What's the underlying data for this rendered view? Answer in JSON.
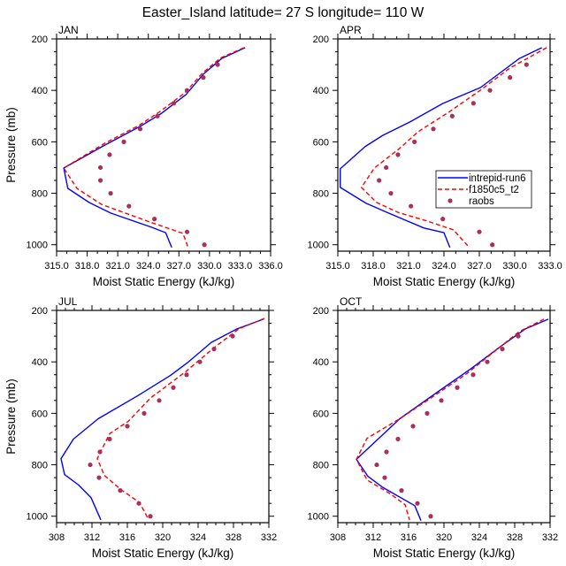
{
  "figure": {
    "title": "Easter_Island  latitude= 27 S longitude= 110 W"
  },
  "legend": {
    "placement": "APR panel, lower-right",
    "entries": [
      {
        "label": "intrepid-run6",
        "style": "solid",
        "color": "#0000ff"
      },
      {
        "label": "f1850c5_t2",
        "style": "dashed",
        "color": "#ff0000"
      },
      {
        "label": "raobs",
        "style": "marker",
        "color": "#a8305c"
      }
    ]
  },
  "chart_data": [
    {
      "type": "line",
      "panel": "top-left",
      "title": "JAN",
      "xlabel": "Moist Static Energy (kJ/kg)",
      "ylabel": "Pressure (mb)",
      "xlim": [
        315,
        336
      ],
      "ylim": [
        1025,
        200
      ],
      "y_reversed": true,
      "xticks": [
        315,
        318,
        321,
        324,
        327,
        330,
        333,
        336
      ],
      "xtick_labels": [
        "315.0",
        "318.0",
        "321.0",
        "324.0",
        "327.0",
        "330.0",
        "333.0",
        "336.0"
      ],
      "x_minor_step": 1,
      "yticks": [
        200,
        400,
        600,
        800,
        1000
      ],
      "ytick_labels": [
        "200",
        "400",
        "600",
        "800",
        "1000"
      ],
      "y_minor_step": 50,
      "show_ylabel": true,
      "series": [
        {
          "name": "intrepid-run6",
          "kind": "line",
          "x": [
            333.5,
            331.2,
            329.4,
            327.7,
            325.3,
            323.2,
            319.9,
            315.7,
            316.1,
            318.2,
            320.3,
            324.3,
            325.7,
            326.3
          ],
          "y": [
            234,
            276,
            337,
            416,
            489,
            540,
            609,
            702,
            781,
            836,
            877,
            932,
            953,
            1011
          ]
        },
        {
          "name": "f1850c5_t2",
          "kind": "dashed",
          "x": [
            333.4,
            331.1,
            329.3,
            327.6,
            325.2,
            323.1,
            319.8,
            315.7,
            317.0,
            319.4,
            323.9,
            327.4,
            327.9
          ],
          "y": [
            234,
            274,
            333,
            409,
            481,
            536,
            604,
            702,
            781,
            843,
            908,
            956,
            1011
          ]
        },
        {
          "name": "raobs",
          "kind": "marker",
          "x": [
            330.8,
            329.4,
            327.8,
            326.5,
            324.9,
            323.2,
            321.6,
            320.2,
            319.3,
            319.3,
            320.3,
            322.1,
            324.6,
            327.8,
            329.5
          ],
          "y": [
            300,
            350,
            400,
            450,
            500,
            550,
            600,
            650,
            700,
            750,
            800,
            850,
            900,
            950,
            1000
          ]
        }
      ]
    },
    {
      "type": "line",
      "panel": "top-right",
      "title": "APR",
      "xlabel": "Moist Static Energy (kJ/kg)",
      "ylabel": "",
      "xlim": [
        315,
        333
      ],
      "ylim": [
        1025,
        200
      ],
      "y_reversed": true,
      "xticks": [
        315,
        318,
        321,
        324,
        327,
        330,
        333
      ],
      "xtick_labels": [
        "315.0",
        "318.0",
        "321.0",
        "324.0",
        "327.0",
        "330.0",
        "333.0"
      ],
      "x_minor_step": 1,
      "yticks": [
        200,
        400,
        600,
        800,
        1000
      ],
      "ytick_labels": [
        "200",
        "400",
        "600",
        "800",
        "1000"
      ],
      "y_minor_step": 50,
      "show_ylabel": false,
      "has_legend": true,
      "series": [
        {
          "name": "intrepid-run6",
          "kind": "line",
          "x": [
            332.3,
            330.4,
            327.1,
            323.9,
            321.1,
            318.8,
            317.3,
            315.2,
            315.2,
            317.4,
            319.3,
            322.3,
            324.0,
            324.5
          ],
          "y": [
            234,
            276,
            389,
            451,
            523,
            575,
            619,
            705,
            777,
            839,
            877,
            935,
            953,
            1011
          ]
        },
        {
          "name": "f1850c5_t2",
          "kind": "dashed",
          "x": [
            332.7,
            329.6,
            327.1,
            324.4,
            321.8,
            320.3,
            318.1,
            317.0,
            318.3,
            320.1,
            322.6,
            324.8,
            326.1
          ],
          "y": [
            234,
            313,
            399,
            485,
            561,
            623,
            702,
            777,
            836,
            874,
            908,
            942,
            1008
          ]
        },
        {
          "name": "raobs",
          "kind": "marker",
          "x": [
            331.0,
            329.6,
            327.9,
            326.5,
            324.7,
            323.1,
            321.5,
            320.1,
            319.1,
            318.5,
            319.5,
            321.2,
            323.9,
            327.0,
            328.1
          ],
          "y": [
            300,
            350,
            400,
            450,
            500,
            550,
            600,
            650,
            700,
            750,
            800,
            850,
            900,
            950,
            1000
          ]
        }
      ]
    },
    {
      "type": "line",
      "panel": "bottom-left",
      "title": "JUL",
      "xlabel": "Moist Static Energy (kJ/kg)",
      "ylabel": "Pressure (mb)",
      "xlim": [
        308,
        332
      ],
      "ylim": [
        1025,
        200
      ],
      "y_reversed": true,
      "xticks": [
        308,
        312,
        316,
        320,
        324,
        328,
        332
      ],
      "xtick_labels": [
        "308",
        "312",
        "316",
        "320",
        "324",
        "328",
        "332"
      ],
      "x_minor_step": 1,
      "yticks": [
        200,
        400,
        600,
        800,
        1000
      ],
      "ytick_labels": [
        "200",
        "400",
        "600",
        "800",
        "1000"
      ],
      "y_minor_step": 50,
      "show_ylabel": true,
      "series": [
        {
          "name": "intrepid-run6",
          "kind": "line",
          "x": [
            331.4,
            328.4,
            325.5,
            322.8,
            320.9,
            317.2,
            312.7,
            309.9,
            308.5,
            308.9,
            310.5,
            311.9,
            313.0
          ],
          "y": [
            234,
            272,
            324,
            403,
            452,
            531,
            621,
            700,
            776,
            838,
            879,
            928,
            1014
          ]
        },
        {
          "name": "f1850c5_t2",
          "kind": "dashed",
          "x": [
            331.5,
            328.6,
            325.8,
            322.6,
            318.6,
            316.1,
            314.0,
            312.6,
            313.4,
            315.3,
            317.3,
            317.9,
            318.3
          ],
          "y": [
            231,
            272,
            345,
            438,
            541,
            631,
            679,
            776,
            841,
            897,
            945,
            979,
            1007
          ]
        },
        {
          "name": "raobs",
          "kind": "marker",
          "x": [
            327.9,
            325.8,
            324.2,
            322.7,
            321.2,
            319.6,
            317.9,
            316.0,
            314.0,
            312.9,
            311.8,
            312.8,
            315.2,
            317.3,
            318.6
          ],
          "y": [
            300,
            350,
            400,
            450,
            500,
            550,
            600,
            650,
            700,
            750,
            800,
            850,
            900,
            950,
            1000
          ]
        }
      ]
    },
    {
      "type": "line",
      "panel": "bottom-right",
      "title": "OCT",
      "xlabel": "Moist Static Energy (kJ/kg)",
      "ylabel": "",
      "xlim": [
        308,
        332
      ],
      "ylim": [
        1025,
        200
      ],
      "y_reversed": true,
      "xticks": [
        308,
        312,
        316,
        320,
        324,
        328,
        332
      ],
      "xtick_labels": [
        "308",
        "312",
        "316",
        "320",
        "324",
        "328",
        "332"
      ],
      "x_minor_step": 1,
      "yticks": [
        200,
        400,
        600,
        800,
        1000
      ],
      "ytick_labels": [
        "200",
        "400",
        "600",
        "800",
        "1000"
      ],
      "y_minor_step": 50,
      "show_ylabel": false,
      "series": [
        {
          "name": "intrepid-run6",
          "kind": "line",
          "x": [
            331.8,
            329.2,
            326.5,
            323.0,
            319.1,
            315.0,
            310.1,
            311.4,
            313.0,
            316.7,
            317.4
          ],
          "y": [
            234,
            272,
            338,
            428,
            521,
            621,
            779,
            845,
            886,
            959,
            1017
          ]
        },
        {
          "name": "f1850c5_t2",
          "kind": "dashed",
          "x": [
            331.3,
            328.5,
            326.5,
            322.5,
            318.5,
            315.0,
            311.3,
            310.1,
            311.3,
            313.8,
            315.6,
            316.1
          ],
          "y": [
            234,
            283,
            338,
            448,
            541,
            621,
            697,
            779,
            859,
            910,
            955,
            1014
          ]
        },
        {
          "name": "raobs",
          "kind": "marker",
          "x": [
            328.4,
            326.6,
            324.9,
            323.3,
            321.5,
            319.7,
            318.1,
            316.5,
            314.8,
            313.5,
            312.4,
            313.3,
            315.2,
            317.0,
            318.5
          ],
          "y": [
            300,
            350,
            400,
            450,
            500,
            550,
            600,
            650,
            700,
            750,
            800,
            850,
            900,
            950,
            1000
          ]
        }
      ]
    }
  ]
}
